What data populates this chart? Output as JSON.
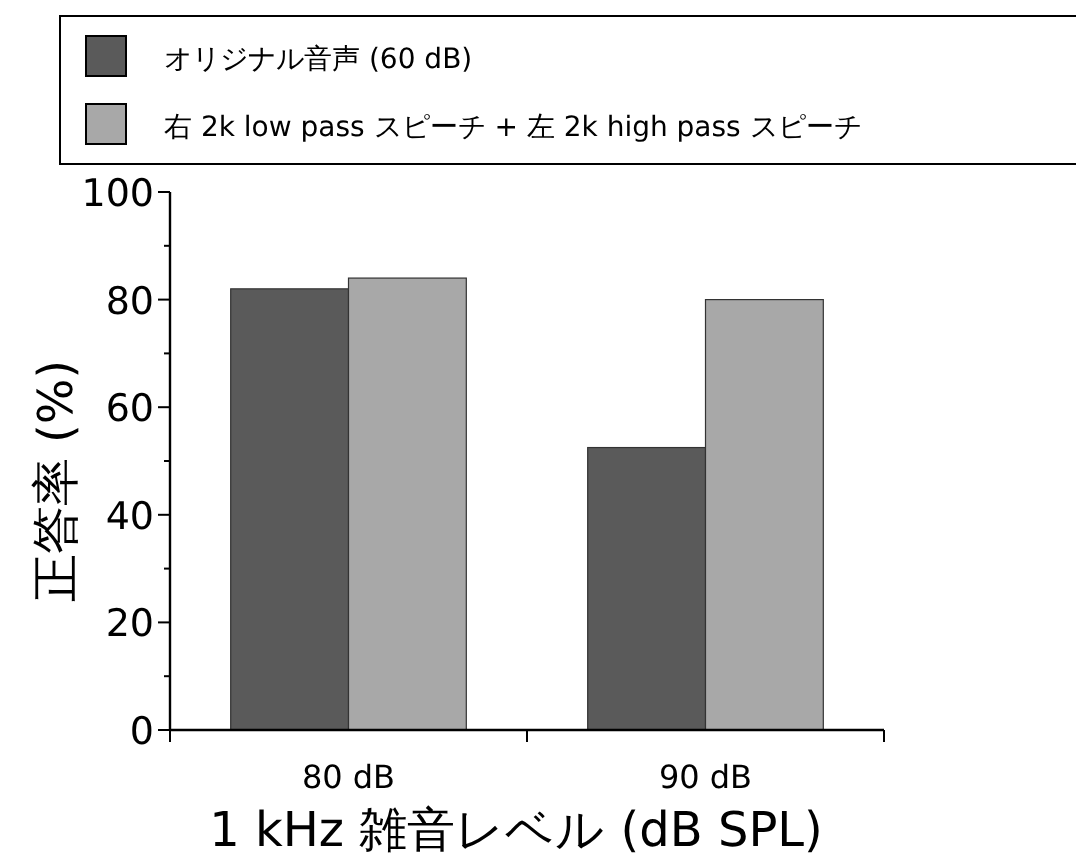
{
  "chart_data": {
    "type": "bar",
    "xlabel": "1 kHz 雑音レベル (dB SPL)",
    "ylabel": "正答率 (%)",
    "categories": [
      "80 dB",
      "90 dB"
    ],
    "series": [
      {
        "name": "オリジナル音声 (60 dB)",
        "color": "#5a5a5a",
        "values": [
          82,
          52.5
        ]
      },
      {
        "name": "右 2k low pass スピーチ + 左 2k high pass スピーチ",
        "color": "#a8a8a8",
        "values": [
          84,
          80
        ]
      }
    ],
    "ylim": [
      0,
      100
    ],
    "yticks": [
      0,
      {
        "value": 10,
        "label": null
      },
      20,
      {
        "value": 30,
        "label": null
      },
      40,
      {
        "value": 50,
        "label": null
      },
      60,
      {
        "value": 70,
        "label": null
      },
      80,
      {
        "value": 90,
        "label": null
      },
      100
    ],
    "grid": false,
    "legend": "top"
  }
}
